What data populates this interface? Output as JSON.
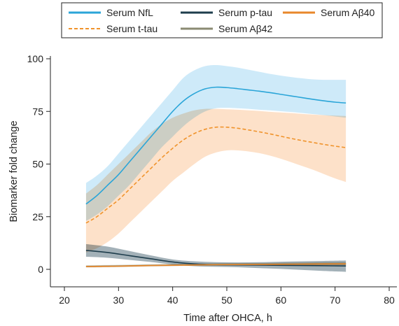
{
  "chart_data": {
    "type": "line",
    "xlabel": "Time after OHCA, h",
    "ylabel": "Biomarker fold change",
    "xlim": [
      20,
      80
    ],
    "ylim": [
      -8,
      100
    ],
    "xticks": [
      20,
      30,
      40,
      50,
      60,
      70,
      80
    ],
    "yticks": [
      0,
      25,
      50,
      75,
      100
    ],
    "grid": false,
    "legend_position": "top",
    "series": [
      {
        "name": "Serum NfL",
        "color": "#2aa5d8",
        "band_color": "#c5e6f8",
        "style": "solid",
        "x": [
          24,
          26,
          28,
          30,
          32,
          34,
          36,
          38,
          40,
          42,
          44,
          46,
          48,
          50,
          52,
          54,
          56,
          58,
          60,
          62,
          64,
          66,
          68,
          70,
          72
        ],
        "y": [
          31,
          35,
          40,
          45,
          51,
          57,
          63,
          69,
          75,
          80,
          83.5,
          85.7,
          86.5,
          86.3,
          85.8,
          85.2,
          84.6,
          83.9,
          83.1,
          82.3,
          81.5,
          80.7,
          80,
          79.4,
          79
        ],
        "lower": [
          23,
          26,
          30,
          35,
          40,
          46,
          52,
          58,
          63,
          68,
          72,
          75,
          76.5,
          76.7,
          76.5,
          76.2,
          75.8,
          75.5,
          75.1,
          74.7,
          74.2,
          73.7,
          73.2,
          72.6,
          72
        ],
        "upper": [
          41,
          44.5,
          49,
          55,
          61,
          67,
          73,
          79,
          85,
          91,
          94.5,
          96.5,
          97,
          96.5,
          95.8,
          94.8,
          93.8,
          92.8,
          92,
          91.3,
          90.7,
          90.2,
          90,
          90,
          90
        ]
      },
      {
        "name": "Serum t-tau",
        "color": "#f0932b",
        "band_color": "#fddcbf",
        "style": "dashed",
        "x": [
          24,
          26,
          28,
          30,
          32,
          34,
          36,
          38,
          40,
          42,
          44,
          46,
          48,
          50,
          52,
          54,
          56,
          58,
          60,
          62,
          64,
          66,
          68,
          70,
          72
        ],
        "y": [
          22,
          25,
          29,
          33,
          38,
          43,
          48,
          53,
          57.5,
          61.5,
          64.5,
          66.5,
          67.5,
          67.5,
          67,
          66.2,
          65.3,
          64.3,
          63.2,
          62.1,
          61.1,
          60.2,
          59.3,
          58.5,
          57.8
        ],
        "lower": [
          8,
          10,
          13,
          17,
          22,
          27,
          32,
          37,
          42,
          46,
          50,
          53.5,
          55.5,
          56.5,
          56.5,
          56,
          55.2,
          54,
          52.5,
          50.8,
          49,
          47.2,
          45.2,
          43.2,
          41.5
        ],
        "upper": [
          36,
          40,
          45,
          50,
          55,
          60,
          65,
          69,
          72,
          74,
          75.5,
          76.2,
          76.2,
          76,
          75.8,
          75.5,
          75.2,
          74.8,
          74.5,
          74.2,
          73.8,
          73.5,
          73.2,
          73,
          72.8
        ]
      },
      {
        "name": "Serum p-tau",
        "color": "#1e3d4c",
        "band_color": "#93a3ac",
        "style": "solid",
        "x": [
          24,
          28,
          32,
          36,
          40,
          44,
          48,
          52,
          56,
          60,
          64,
          68,
          72
        ],
        "y": [
          9,
          8,
          6.5,
          5,
          3.5,
          2.6,
          2.2,
          2.1,
          2.0,
          1.9,
          1.8,
          1.7,
          1.6
        ],
        "lower": [
          6,
          5.5,
          4.5,
          3.5,
          2.3,
          1.5,
          1.2,
          1.0,
          0.6,
          0.2,
          -0.3,
          -0.8,
          -1.2
        ],
        "upper": [
          12,
          10.8,
          8.7,
          6.6,
          4.7,
          3.8,
          3.4,
          3.3,
          3.4,
          3.6,
          3.8,
          4.0,
          4.2
        ]
      },
      {
        "name": "Serum Aβ42",
        "color": "#8a8a72",
        "band_color": "#c7c7b6",
        "style": "solid",
        "x": [
          24,
          30,
          36,
          42,
          48,
          54,
          60,
          66,
          72
        ],
        "y": [
          1.4,
          1.6,
          1.9,
          2.1,
          2.3,
          2.4,
          2.5,
          2.6,
          2.7
        ],
        "lower": [
          0.9,
          1.1,
          1.4,
          1.6,
          1.7,
          1.8,
          1.9,
          1.9,
          2.0
        ],
        "upper": [
          1.9,
          2.1,
          2.4,
          2.6,
          2.9,
          3.0,
          3.1,
          3.3,
          3.4
        ]
      },
      {
        "name": "Serum Aβ40",
        "color": "#e8872a",
        "band_color": "#f6c99b",
        "style": "solid",
        "x": [
          24,
          30,
          36,
          42,
          48,
          54,
          60,
          66,
          72
        ],
        "y": [
          1.3,
          1.5,
          1.8,
          2.0,
          2.2,
          2.3,
          2.4,
          2.5,
          2.6
        ],
        "lower": [
          1.0,
          1.2,
          1.5,
          1.7,
          1.9,
          2.0,
          2.1,
          2.1,
          2.2
        ],
        "upper": [
          1.6,
          1.8,
          2.1,
          2.3,
          2.5,
          2.6,
          2.7,
          2.9,
          3.0
        ]
      }
    ],
    "legend_order": [
      "Serum NfL",
      "Serum p-tau",
      "Serum Aβ40",
      "Serum t-tau",
      "Serum Aβ42"
    ]
  }
}
